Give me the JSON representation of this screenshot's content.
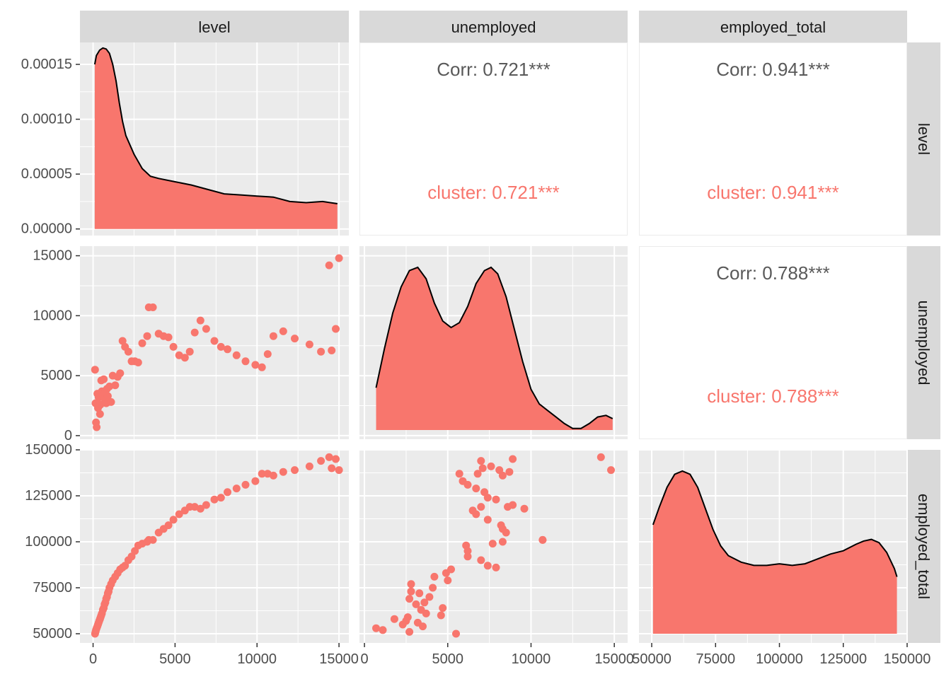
{
  "chart_data": {
    "type": "pairs",
    "variables": [
      "level",
      "unemployed",
      "employed_total"
    ],
    "colors": {
      "cluster": "#F8766D",
      "panel_bg": "#EBEBEB",
      "strip_bg": "#D9D9D9",
      "grid": "#FFFFFF"
    },
    "axes": {
      "level": {
        "range": [
          -800,
          15600
        ],
        "ticks": [
          0,
          5000,
          10000,
          15000
        ],
        "tick_labels": [
          "0",
          "5000",
          "10000",
          "15000"
        ]
      },
      "unemployed": {
        "range": [
          -300,
          15800
        ],
        "ticks": [
          0,
          5000,
          10000,
          15000
        ],
        "tick_labels": [
          "0",
          "5000",
          "10000",
          "15000"
        ]
      },
      "employed_total": {
        "range": [
          45000,
          150000
        ],
        "ticks": [
          50000,
          75000,
          100000,
          125000,
          150000
        ],
        "tick_labels": [
          "50000",
          "75000",
          "100000",
          "125000",
          "150000"
        ]
      },
      "level_density": {
        "range": [
          -6e-06,
          0.00017
        ],
        "ticks": [
          0,
          5e-05,
          0.0001,
          0.00015
        ],
        "tick_labels": [
          "0.00000",
          "0.00005",
          "0.00010",
          "0.00015"
        ]
      }
    },
    "correlations": [
      {
        "row": "level",
        "col": "unemployed",
        "corr_label": "Corr: 0.721***",
        "cluster_label": "cluster: 0.721***"
      },
      {
        "row": "level",
        "col": "employed_total",
        "corr_label": "Corr: 0.941***",
        "cluster_label": "cluster: 0.941***"
      },
      {
        "row": "unemployed",
        "col": "employed_total",
        "corr_label": "Corr: 0.788***",
        "cluster_label": "cluster: 0.788***"
      }
    ],
    "density": {
      "level": [
        [
          100,
          0.00015
        ],
        [
          200,
          0.000158
        ],
        [
          400,
          0.000163
        ],
        [
          600,
          0.000165
        ],
        [
          800,
          0.000164
        ],
        [
          1000,
          0.00016
        ],
        [
          1200,
          0.00015
        ],
        [
          1400,
          0.000135
        ],
        [
          1600,
          0.000115
        ],
        [
          1800,
          9.8e-05
        ],
        [
          2000,
          8.5e-05
        ],
        [
          2500,
          6.8e-05
        ],
        [
          3000,
          5.5e-05
        ],
        [
          3500,
          4.8e-05
        ],
        [
          4000,
          4.6e-05
        ],
        [
          5000,
          4.3e-05
        ],
        [
          6000,
          4e-05
        ],
        [
          7000,
          3.6e-05
        ],
        [
          8000,
          3.2e-05
        ],
        [
          9000,
          3.1e-05
        ],
        [
          10000,
          3e-05
        ],
        [
          11000,
          2.9e-05
        ],
        [
          12000,
          2.5e-05
        ],
        [
          13000,
          2.4e-05
        ],
        [
          14000,
          2.5e-05
        ],
        [
          14900,
          2.3e-05
        ]
      ],
      "unemployed": [
        [
          700,
          0.26
        ],
        [
          1200,
          0.5
        ],
        [
          1700,
          0.72
        ],
        [
          2200,
          0.88
        ],
        [
          2700,
          0.98
        ],
        [
          3200,
          1.0
        ],
        [
          3700,
          0.93
        ],
        [
          4200,
          0.78
        ],
        [
          4700,
          0.67
        ],
        [
          5200,
          0.63
        ],
        [
          5700,
          0.66
        ],
        [
          6200,
          0.76
        ],
        [
          6700,
          0.9
        ],
        [
          7200,
          0.98
        ],
        [
          7600,
          1.0
        ],
        [
          8000,
          0.96
        ],
        [
          8500,
          0.82
        ],
        [
          9000,
          0.62
        ],
        [
          9500,
          0.42
        ],
        [
          10000,
          0.25
        ],
        [
          10500,
          0.16
        ],
        [
          11000,
          0.12
        ],
        [
          11500,
          0.08
        ],
        [
          12000,
          0.04
        ],
        [
          12500,
          0.01
        ],
        [
          13000,
          0.01
        ],
        [
          13500,
          0.04
        ],
        [
          14000,
          0.08
        ],
        [
          14500,
          0.09
        ],
        [
          14900,
          0.07
        ]
      ],
      "employed_total": [
        [
          50500,
          0.67
        ],
        [
          53000,
          0.78
        ],
        [
          56000,
          0.9
        ],
        [
          59000,
          0.98
        ],
        [
          62000,
          1.0
        ],
        [
          65000,
          0.98
        ],
        [
          68000,
          0.9
        ],
        [
          71000,
          0.77
        ],
        [
          74000,
          0.64
        ],
        [
          77000,
          0.54
        ],
        [
          80000,
          0.48
        ],
        [
          85000,
          0.44
        ],
        [
          90000,
          0.42
        ],
        [
          95000,
          0.42
        ],
        [
          100000,
          0.43
        ],
        [
          105000,
          0.42
        ],
        [
          110000,
          0.43
        ],
        [
          115000,
          0.46
        ],
        [
          120000,
          0.49
        ],
        [
          125000,
          0.51
        ],
        [
          130000,
          0.55
        ],
        [
          133000,
          0.57
        ],
        [
          136000,
          0.58
        ],
        [
          139000,
          0.56
        ],
        [
          142000,
          0.5
        ],
        [
          145000,
          0.4
        ],
        [
          146000,
          0.35
        ]
      ]
    },
    "points": [
      {
        "level": 120,
        "unemployed": 5500,
        "employed_total": 50000
      },
      {
        "level": 150,
        "unemployed": 2700,
        "employed_total": 51000
      },
      {
        "level": 180,
        "unemployed": 1100,
        "employed_total": 52000
      },
      {
        "level": 220,
        "unemployed": 700,
        "employed_total": 53000
      },
      {
        "level": 260,
        "unemployed": 3500,
        "employed_total": 54000
      },
      {
        "level": 300,
        "unemployed": 2300,
        "employed_total": 55000
      },
      {
        "level": 340,
        "unemployed": 3200,
        "employed_total": 56000
      },
      {
        "level": 380,
        "unemployed": 2500,
        "employed_total": 57000
      },
      {
        "level": 420,
        "unemployed": 1800,
        "employed_total": 58000
      },
      {
        "level": 460,
        "unemployed": 2600,
        "employed_total": 59000
      },
      {
        "level": 500,
        "unemployed": 4600,
        "employed_total": 60000
      },
      {
        "level": 540,
        "unemployed": 3700,
        "employed_total": 61000
      },
      {
        "level": 600,
        "unemployed": 3400,
        "employed_total": 63000
      },
      {
        "level": 650,
        "unemployed": 4700,
        "employed_total": 64000
      },
      {
        "level": 700,
        "unemployed": 3100,
        "employed_total": 66000
      },
      {
        "level": 750,
        "unemployed": 3600,
        "employed_total": 67000
      },
      {
        "level": 800,
        "unemployed": 2700,
        "employed_total": 69000
      },
      {
        "level": 850,
        "unemployed": 3900,
        "employed_total": 70000
      },
      {
        "level": 900,
        "unemployed": 3300,
        "employed_total": 72000
      },
      {
        "level": 950,
        "unemployed": 2800,
        "employed_total": 73000
      },
      {
        "level": 1000,
        "unemployed": 4100,
        "employed_total": 75000
      },
      {
        "level": 1100,
        "unemployed": 2800,
        "employed_total": 77000
      },
      {
        "level": 1200,
        "unemployed": 5000,
        "employed_total": 79000
      },
      {
        "level": 1350,
        "unemployed": 4200,
        "employed_total": 81000
      },
      {
        "level": 1500,
        "unemployed": 4900,
        "employed_total": 83000
      },
      {
        "level": 1650,
        "unemployed": 5200,
        "employed_total": 85000
      },
      {
        "level": 1800,
        "unemployed": 7900,
        "employed_total": 86000
      },
      {
        "level": 1950,
        "unemployed": 7400,
        "employed_total": 87000
      },
      {
        "level": 2150,
        "unemployed": 7000,
        "employed_total": 90000
      },
      {
        "level": 2350,
        "unemployed": 6200,
        "employed_total": 92000
      },
      {
        "level": 2550,
        "unemployed": 6200,
        "employed_total": 95000
      },
      {
        "level": 2750,
        "unemployed": 6100,
        "employed_total": 98000
      },
      {
        "level": 3000,
        "unemployed": 7700,
        "employed_total": 99000
      },
      {
        "level": 3300,
        "unemployed": 8300,
        "employed_total": 100000
      },
      {
        "level": 3400,
        "unemployed": 10700,
        "employed_total": 101000
      },
      {
        "level": 3650,
        "unemployed": 10700,
        "employed_total": 101000
      },
      {
        "level": 4000,
        "unemployed": 8500,
        "employed_total": 105000
      },
      {
        "level": 4300,
        "unemployed": 8300,
        "employed_total": 107000
      },
      {
        "level": 4600,
        "unemployed": 8200,
        "employed_total": 109000
      },
      {
        "level": 4900,
        "unemployed": 7400,
        "employed_total": 112000
      },
      {
        "level": 5250,
        "unemployed": 6700,
        "employed_total": 115000
      },
      {
        "level": 5600,
        "unemployed": 6500,
        "employed_total": 117000
      },
      {
        "level": 5900,
        "unemployed": 7000,
        "employed_total": 119000
      },
      {
        "level": 6200,
        "unemployed": 8600,
        "employed_total": 119000
      },
      {
        "level": 6550,
        "unemployed": 9600,
        "employed_total": 118000
      },
      {
        "level": 6900,
        "unemployed": 8900,
        "employed_total": 120000
      },
      {
        "level": 7400,
        "unemployed": 7900,
        "employed_total": 123000
      },
      {
        "level": 7800,
        "unemployed": 7400,
        "employed_total": 124000
      },
      {
        "level": 8200,
        "unemployed": 7200,
        "employed_total": 127000
      },
      {
        "level": 8750,
        "unemployed": 6700,
        "employed_total": 129000
      },
      {
        "level": 9300,
        "unemployed": 6200,
        "employed_total": 131000
      },
      {
        "level": 9900,
        "unemployed": 5900,
        "employed_total": 133000
      },
      {
        "level": 10300,
        "unemployed": 5700,
        "employed_total": 137000
      },
      {
        "level": 10650,
        "unemployed": 6800,
        "employed_total": 137000
      },
      {
        "level": 11000,
        "unemployed": 8300,
        "employed_total": 136000
      },
      {
        "level": 11600,
        "unemployed": 8700,
        "employed_total": 138000
      },
      {
        "level": 12300,
        "unemployed": 8100,
        "employed_total": 139000
      },
      {
        "level": 13200,
        "unemployed": 7600,
        "employed_total": 141000
      },
      {
        "level": 13900,
        "unemployed": 7000,
        "employed_total": 144000
      },
      {
        "level": 14400,
        "unemployed": 14200,
        "employed_total": 146000
      },
      {
        "level": 14550,
        "unemployed": 7100,
        "employed_total": 140000
      },
      {
        "level": 14800,
        "unemployed": 8900,
        "employed_total": 145000
      },
      {
        "level": 15000,
        "unemployed": 14800,
        "employed_total": 139000
      }
    ]
  }
}
